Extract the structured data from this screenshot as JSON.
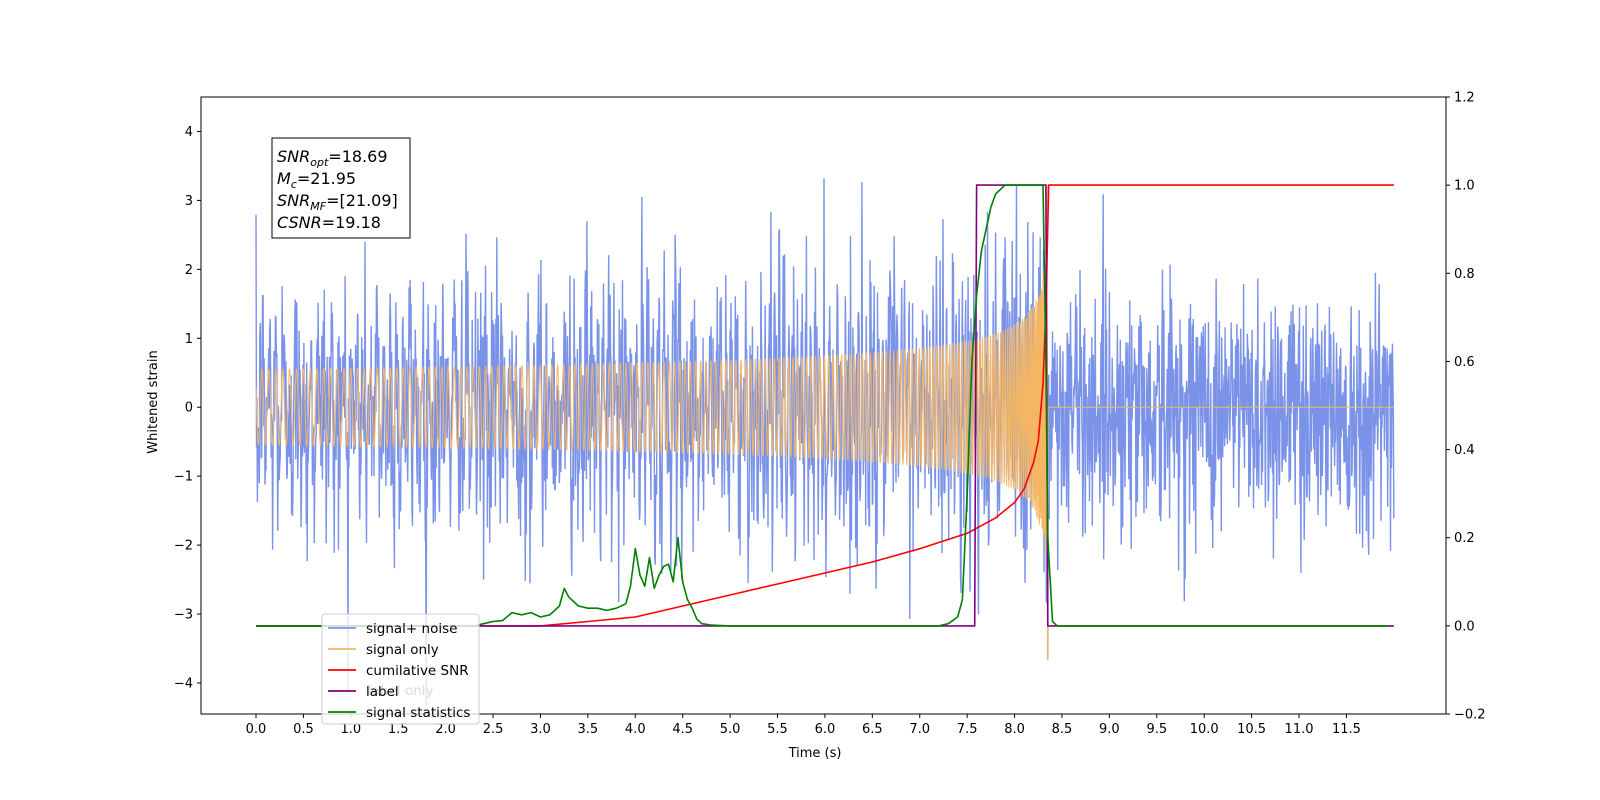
{
  "chart_data": {
    "type": "line",
    "xlabel": "Time (s)",
    "ylabel": "Whitened strain",
    "xlim": [
      -0.58,
      12.55
    ],
    "ylim": [
      -4.45,
      4.5
    ],
    "y2lim": [
      -0.2,
      1.2
    ],
    "xticks": [
      "0.0",
      "0.5",
      "1.0",
      "1.5",
      "2.0",
      "2.5",
      "3.0",
      "3.5",
      "4.0",
      "4.5",
      "5.0",
      "5.5",
      "6.0",
      "6.5",
      "7.0",
      "7.5",
      "8.0",
      "8.5",
      "9.0",
      "9.5",
      "10.0",
      "10.5",
      "11.0",
      "11.5"
    ],
    "yticks": [
      "4",
      "3",
      "2",
      "1",
      "0",
      "−1",
      "−2",
      "−3",
      "−4"
    ],
    "y2ticks": [
      "1.2",
      "1.0",
      "0.8",
      "0.6",
      "0.4",
      "0.2",
      "0.0",
      "−0.2"
    ],
    "annotation": [
      {
        "base": "SNR",
        "sub": "opt",
        "value": "=18.69"
      },
      {
        "base": "M",
        "sub": "c",
        "value": "=21.95"
      },
      {
        "base": "SNR",
        "sub": "MF",
        "value": "=[21.09]"
      },
      {
        "base": "CSNR",
        "sub": "",
        "value": "=19.18"
      }
    ],
    "series": [
      {
        "name": "signal+ noise",
        "color": "#7a93e8",
        "axis": "left",
        "std": 0.9,
        "duration": 12.0,
        "samples": 2400
      },
      {
        "name": "signal only",
        "color": "#f5b663",
        "axis": "left",
        "merger_time": 8.35,
        "peak_amplitude": 3.7
      },
      {
        "name": "cumilative SNR",
        "color": "#ff0000",
        "axis": "right",
        "x": [
          0.0,
          2.0,
          2.5,
          3.0,
          3.5,
          4.0,
          4.5,
          5.0,
          5.5,
          6.0,
          6.5,
          7.0,
          7.5,
          7.8,
          8.0,
          8.1,
          8.2,
          8.25,
          8.3,
          8.33,
          8.36,
          12.0
        ],
        "y": [
          0.0,
          0.0,
          0.0,
          0.0,
          0.01,
          0.02,
          0.045,
          0.07,
          0.095,
          0.12,
          0.145,
          0.175,
          0.21,
          0.245,
          0.28,
          0.31,
          0.37,
          0.42,
          0.55,
          0.72,
          1.0,
          1.0
        ]
      },
      {
        "name": "label",
        "color": "#800080",
        "axis": "right",
        "x": [
          0.0,
          7.58,
          7.6,
          8.33,
          8.35,
          12.0
        ],
        "y": [
          0.0,
          0.0,
          1.0,
          1.0,
          0.0,
          0.0
        ]
      },
      {
        "name": "signal statistics",
        "color": "#008000",
        "axis": "right",
        "x": [
          0.0,
          2.3,
          2.4,
          2.5,
          2.6,
          2.7,
          2.8,
          2.9,
          3.0,
          3.1,
          3.2,
          3.25,
          3.3,
          3.4,
          3.5,
          3.6,
          3.7,
          3.8,
          3.9,
          3.95,
          4.0,
          4.05,
          4.1,
          4.15,
          4.2,
          4.25,
          4.3,
          4.35,
          4.4,
          4.45,
          4.5,
          4.55,
          4.6,
          4.65,
          4.7,
          4.8,
          5.0,
          7.2,
          7.3,
          7.4,
          7.45,
          7.5,
          7.55,
          7.6,
          7.65,
          7.7,
          7.75,
          7.8,
          7.85,
          7.9,
          8.0,
          8.1,
          8.3,
          8.33,
          8.35,
          8.4,
          8.45,
          11.95
        ],
        "y": [
          0.0,
          0.0,
          0.005,
          0.01,
          0.012,
          0.03,
          0.025,
          0.03,
          0.02,
          0.025,
          0.045,
          0.085,
          0.065,
          0.045,
          0.04,
          0.04,
          0.035,
          0.04,
          0.05,
          0.09,
          0.175,
          0.115,
          0.09,
          0.155,
          0.085,
          0.115,
          0.135,
          0.14,
          0.1,
          0.2,
          0.1,
          0.06,
          0.04,
          0.015,
          0.005,
          0.002,
          0.0,
          0.0,
          0.005,
          0.02,
          0.06,
          0.3,
          0.6,
          0.75,
          0.85,
          0.9,
          0.95,
          0.98,
          0.99,
          1.0,
          1.0,
          1.0,
          1.0,
          0.6,
          0.2,
          0.01,
          0.0,
          0.0
        ]
      }
    ],
    "legend": {
      "placement": "lower-left",
      "entries": [
        {
          "label": "signal+ noise",
          "color": "#7a93e8"
        },
        {
          "label": "signal only",
          "color": "#f5b663"
        },
        {
          "label": "cumilative SNR",
          "color": "#ff0000"
        },
        {
          "label": "label",
          "color": "#800080"
        },
        {
          "label": "signal statistics",
          "color": "#008000"
        }
      ],
      "hidden_text": [
        "label only"
      ]
    },
    "grid": false
  }
}
